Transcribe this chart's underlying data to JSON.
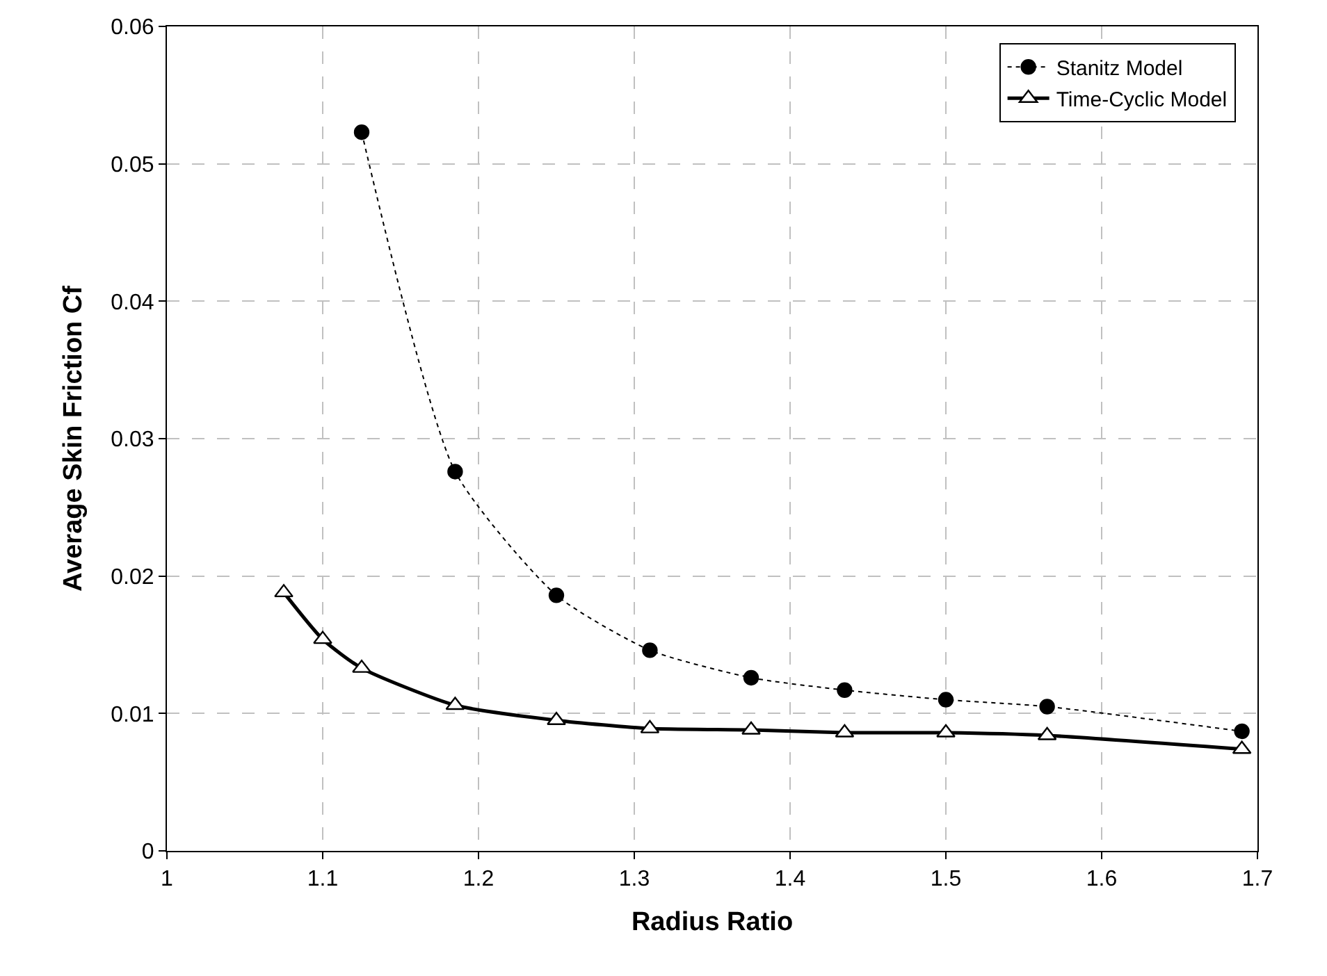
{
  "chart_data": {
    "type": "line",
    "xlabel": "Radius Ratio",
    "ylabel": "Average Skin Friction Cf",
    "xlim": [
      1,
      1.7
    ],
    "xticks": [
      1,
      1.1,
      1.2,
      1.3,
      1.4,
      1.5,
      1.6,
      1.7
    ],
    "ylim": [
      0,
      0.06
    ],
    "yticks": [
      0,
      0.01,
      0.02,
      0.03,
      0.04,
      0.05,
      0.06
    ],
    "grid": true,
    "legend": "top right",
    "series": [
      {
        "name": "Stanitz Model",
        "color": "#000000",
        "marker": "circle",
        "line_style": "dotted",
        "x": [
          1.125,
          1.185,
          1.25,
          1.31,
          1.375,
          1.435,
          1.5,
          1.565,
          1.69
        ],
        "values": [
          0.0523,
          0.0276,
          0.0186,
          0.0146,
          0.0126,
          0.0117,
          0.011,
          0.0105,
          0.0087
        ]
      },
      {
        "name": "Time-Cyclic Model",
        "color": "#000000",
        "marker": "triangle",
        "line_style": "solid",
        "x": [
          1.075,
          1.1,
          1.125,
          1.185,
          1.25,
          1.31,
          1.375,
          1.435,
          1.5,
          1.565,
          1.69
        ],
        "values": [
          0.0188,
          0.0154,
          0.0133,
          0.0106,
          0.0095,
          0.0089,
          0.0088,
          0.0086,
          0.0086,
          0.0084,
          0.0074
        ]
      }
    ]
  }
}
